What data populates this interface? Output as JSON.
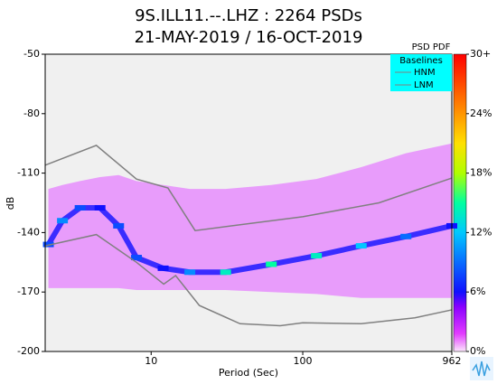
{
  "chart_data": {
    "type": "psd_pdf",
    "title": [
      "9S.ILL11.--.LHZ : 2264 PSDs",
      "21-MAY-2019 / 16-OCT-2019"
    ],
    "x_label": "Period (Sec)",
    "y_label": "dB",
    "x_log": true,
    "xlim": [
      2,
      962
    ],
    "xticks": [
      10,
      100,
      962
    ],
    "ylim": [
      -200,
      -50
    ],
    "yticks": [
      -50,
      -80,
      -110,
      -140,
      -170,
      -200
    ],
    "colorbar_title": "PSD PDF",
    "clim": [
      0,
      30
    ],
    "cticks": [
      {
        "value": 0,
        "label": "0%"
      },
      {
        "value": 6,
        "label": "6%"
      },
      {
        "value": 12,
        "label": "12%"
      },
      {
        "value": 18,
        "label": "18%"
      },
      {
        "value": 24,
        "label": "24%"
      },
      {
        "value": 30,
        "label": "30+"
      }
    ],
    "legend_title": "Baselines",
    "series": [
      {
        "name": "HNM",
        "color": "#808080",
        "x": [
          2,
          4.35,
          8,
          12.9,
          19.5,
          100,
          318,
          962
        ],
        "values": [
          -106,
          -96,
          -113,
          -117.5,
          -139,
          -132,
          -125,
          -112.5
        ]
      },
      {
        "name": "LNM",
        "color": "#808080",
        "x": [
          2,
          4.35,
          8,
          12.1,
          14.5,
          20.8,
          38.6,
          71,
          100,
          243,
          549,
          962
        ],
        "values": [
          -146.7,
          -141,
          -155,
          -166,
          -161.7,
          -176.8,
          -186,
          -187,
          -185.5,
          -186,
          -183,
          -179
        ]
      }
    ],
    "pdf": {
      "x": [
        2.1,
        2.6,
        3.4,
        4.6,
        6.1,
        8,
        12,
        18,
        31,
        62,
        123,
        243,
        479,
        962
      ],
      "mode": [
        -146,
        -134,
        -127.5,
        -127.5,
        -136.6,
        -152.6,
        -158,
        -160,
        -160,
        -156,
        -151.7,
        -146.7,
        -142,
        -136.6
      ],
      "pct": [
        8,
        10,
        8,
        6,
        8,
        8,
        6,
        10,
        14,
        15,
        14,
        12,
        9,
        6
      ],
      "high": [
        -118,
        -116,
        -114,
        -112,
        -111,
        -114,
        -116,
        -118,
        -118,
        -116,
        -113,
        -107,
        -100,
        -95
      ],
      "low": [
        -168,
        -168,
        -168,
        -168,
        -168,
        -169,
        -169,
        -169,
        -169,
        -170,
        -171,
        -173,
        -173,
        -173
      ]
    }
  }
}
